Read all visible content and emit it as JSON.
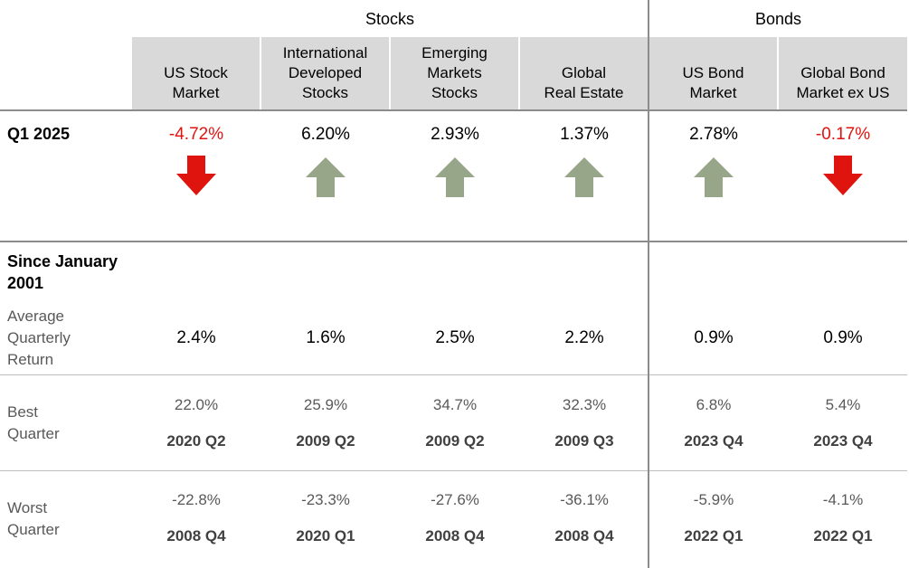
{
  "colors": {
    "negative": "#e0140f",
    "positive": "#97a589",
    "header_bg": "#d9d9d9"
  },
  "groups": [
    {
      "label": "Stocks"
    },
    {
      "label": "Bonds"
    }
  ],
  "columns": [
    {
      "header": "US Stock\nMarket",
      "q1": "-4.72%",
      "direction": "down",
      "avg": "2.4%",
      "best": "22.0%",
      "best_q": "2020 Q2",
      "worst": "-22.8%",
      "worst_q": "2008 Q4"
    },
    {
      "header": "International\nDeveloped\nStocks",
      "q1": "6.20%",
      "direction": "up",
      "avg": "1.6%",
      "best": "25.9%",
      "best_q": "2009 Q2",
      "worst": "-23.3%",
      "worst_q": "2020 Q1"
    },
    {
      "header": "Emerging\nMarkets\nStocks",
      "q1": "2.93%",
      "direction": "up",
      "avg": "2.5%",
      "best": "34.7%",
      "best_q": "2009 Q2",
      "worst": "-27.6%",
      "worst_q": "2008 Q4"
    },
    {
      "header": "Global\nReal Estate",
      "q1": "1.37%",
      "direction": "up",
      "avg": "2.2%",
      "best": "32.3%",
      "best_q": "2009 Q3",
      "worst": "-36.1%",
      "worst_q": "2008 Q4"
    },
    {
      "header": "US Bond\nMarket",
      "q1": "2.78%",
      "direction": "up",
      "avg": "0.9%",
      "best": "6.8%",
      "best_q": "2023 Q4",
      "worst": "-5.9%",
      "worst_q": "2022 Q1"
    },
    {
      "header": "Global Bond\nMarket ex US",
      "q1": "-0.17%",
      "direction": "down",
      "avg": "0.9%",
      "best": "5.4%",
      "best_q": "2023 Q4",
      "worst": "-4.1%",
      "worst_q": "2022 Q1"
    }
  ],
  "rows": {
    "q1_label": "Q1 2025",
    "since_label": "Since January\n2001",
    "avg_label": "Average\nQuarterly\nReturn",
    "best_label": "Best\nQuarter",
    "worst_label": "Worst\nQuarter"
  },
  "chart_data": {
    "type": "table",
    "categories": [
      "US Stock Market",
      "International Developed Stocks",
      "Emerging Markets Stocks",
      "Global Real Estate",
      "US Bond Market",
      "Global Bond Market ex US"
    ],
    "series": [
      {
        "name": "Q1 2025",
        "values": [
          -4.72,
          6.2,
          2.93,
          1.37,
          2.78,
          -0.17
        ]
      },
      {
        "name": "Average Quarterly Return",
        "values": [
          2.4,
          1.6,
          2.5,
          2.2,
          0.9,
          0.9
        ]
      },
      {
        "name": "Best Quarter",
        "values": [
          22.0,
          25.9,
          34.7,
          32.3,
          6.8,
          5.4
        ]
      },
      {
        "name": "Worst Quarter",
        "values": [
          -22.8,
          -23.3,
          -27.6,
          -36.1,
          -5.9,
          -4.1
        ]
      }
    ]
  }
}
